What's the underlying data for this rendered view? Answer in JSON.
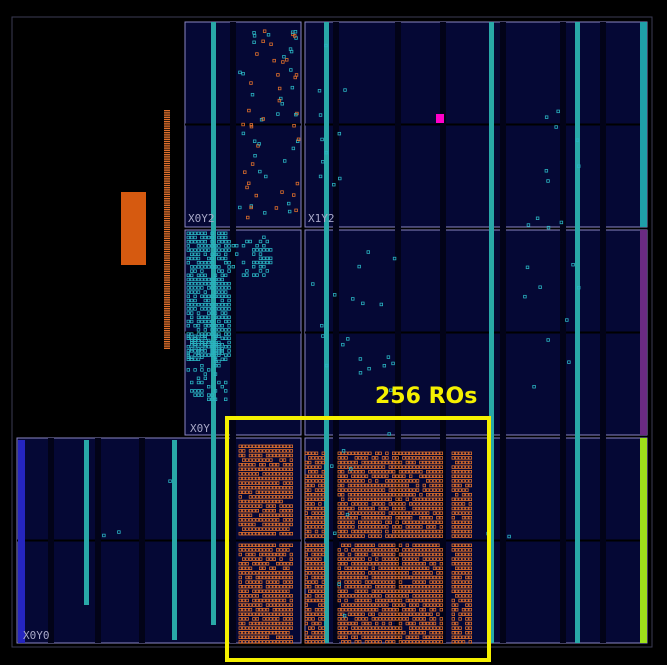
{
  "annotation": {
    "label": "256 ROs",
    "color": "#f5f000"
  },
  "regions": {
    "x0y0": "X0Y0",
    "x0y1": "X0Y",
    "x0y2": "X0Y2",
    "x1y2": "X1Y2"
  },
  "colors": {
    "background": "#000000",
    "region_fill": "#050835",
    "region_border": "#8a86c4",
    "clock_column": "#29a8a8",
    "cell_cyan": "#2ab4c2",
    "cell_orange": "#e0702c",
    "io_bank_blue": "#2525c0",
    "io_bank_purple": "#6a2a82",
    "io_bank_green": "#9ee01a",
    "io_bank_teal": "#1fa0a8",
    "marker_magenta": "#ff00c8",
    "pin_block": "#d65a10"
  }
}
